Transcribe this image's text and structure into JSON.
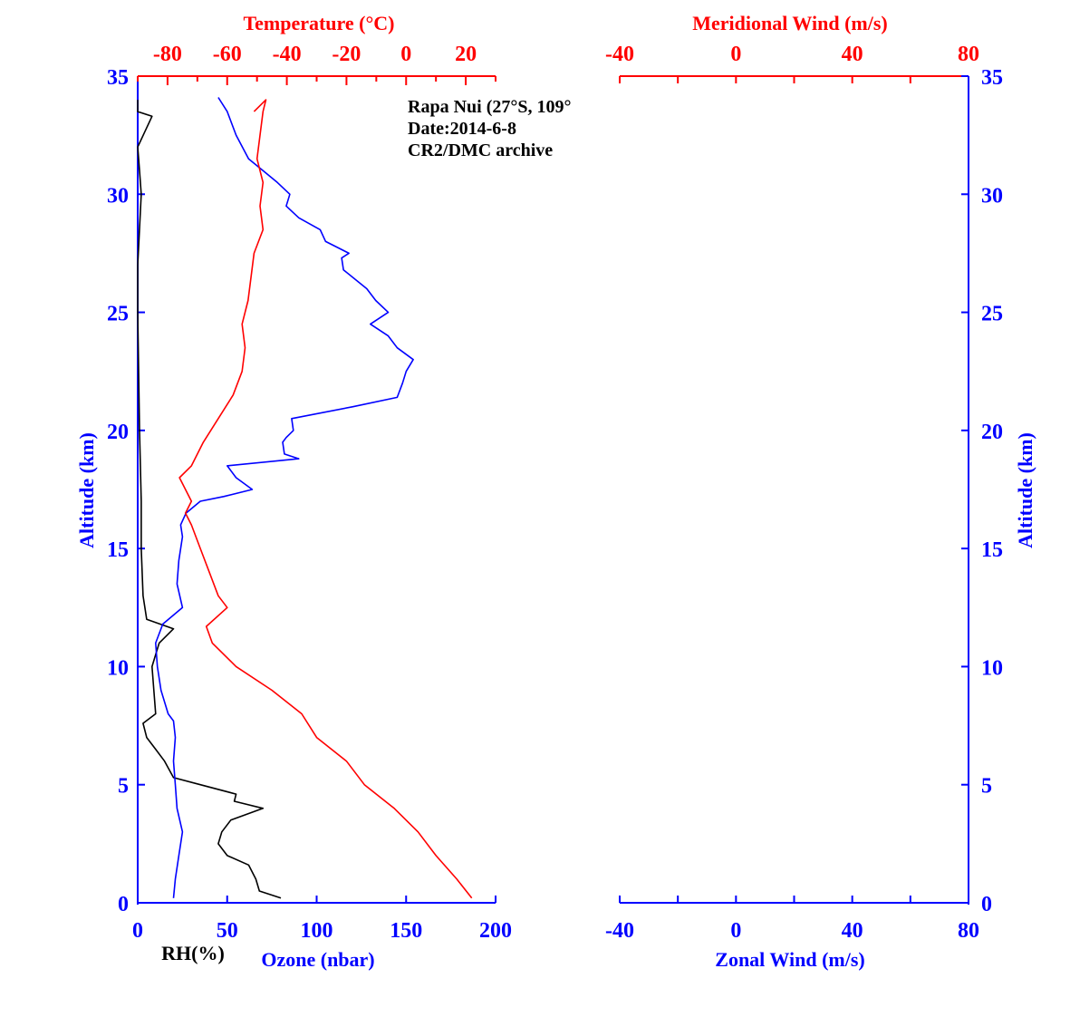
{
  "chart_data": [
    {
      "type": "line",
      "panel": "left",
      "annotations": [
        "Rapa Nui (27°S, 109°",
        "Date:2014-6-8",
        "CR2/DMC archive"
      ],
      "y_axis": {
        "label": "Altitude (km)",
        "range": [
          0,
          35
        ],
        "ticks": [
          0,
          5,
          10,
          15,
          20,
          25,
          30,
          35
        ],
        "color": "#0000ff"
      },
      "x_axes": [
        {
          "label": "Ozone (nbar)",
          "position": "bottom",
          "range": [
            0,
            200
          ],
          "ticks": [
            0,
            50,
            100,
            150,
            200
          ],
          "color": "#0000ff"
        },
        {
          "label": "RH(%)",
          "position": "bottom",
          "color": "#000000"
        },
        {
          "label": "Temperature (°C)",
          "position": "top",
          "range": [
            -90,
            30
          ],
          "ticks": [
            -80,
            -60,
            -40,
            -20,
            0,
            20
          ],
          "color": "#ff0000"
        }
      ],
      "series": [
        {
          "name": "Ozone (nbar)",
          "axis": "Ozone (nbar)",
          "color": "#0000ff",
          "points": [
            [
              20,
              0.2
            ],
            [
              21,
              1
            ],
            [
              23,
              2
            ],
            [
              25,
              3
            ],
            [
              22,
              4
            ],
            [
              21,
              5
            ],
            [
              20,
              6
            ],
            [
              21,
              7
            ],
            [
              20,
              7.7
            ],
            [
              17,
              8
            ],
            [
              13,
              9
            ],
            [
              11,
              10
            ],
            [
              10,
              11
            ],
            [
              14,
              11.8
            ],
            [
              25,
              12.5
            ],
            [
              22,
              13.5
            ],
            [
              23,
              14.5
            ],
            [
              25,
              15.5
            ],
            [
              24,
              16
            ],
            [
              27,
              16.5
            ],
            [
              35,
              17
            ],
            [
              48,
              17.2
            ],
            [
              64,
              17.5
            ],
            [
              55,
              18
            ],
            [
              50,
              18.5
            ],
            [
              90,
              18.8
            ],
            [
              82,
              19
            ],
            [
              81,
              19.5
            ],
            [
              83,
              19.7
            ],
            [
              87,
              20
            ],
            [
              86,
              20.5
            ],
            [
              120,
              21
            ],
            [
              145,
              21.4
            ],
            [
              148,
              22
            ],
            [
              150,
              22.5
            ],
            [
              154,
              23
            ],
            [
              145,
              23.5
            ],
            [
              140,
              24
            ],
            [
              130,
              24.5
            ],
            [
              140,
              25
            ],
            [
              133,
              25.5
            ],
            [
              128,
              26
            ],
            [
              115,
              26.8
            ],
            [
              114,
              27.3
            ],
            [
              118,
              27.5
            ],
            [
              105,
              28
            ],
            [
              102,
              28.5
            ],
            [
              90,
              29
            ],
            [
              83,
              29.5
            ],
            [
              85,
              30
            ],
            [
              78,
              30.5
            ],
            [
              70,
              31
            ],
            [
              62,
              31.5
            ],
            [
              55,
              32.5
            ],
            [
              50,
              33.5
            ],
            [
              45,
              34.1
            ]
          ]
        },
        {
          "name": "RH(%)",
          "axis": "Ozone (nbar)",
          "color": "#000000",
          "points": [
            [
              80,
              0.2
            ],
            [
              68,
              0.5
            ],
            [
              66,
              1
            ],
            [
              62,
              1.6
            ],
            [
              50,
              2
            ],
            [
              45,
              2.5
            ],
            [
              47,
              3
            ],
            [
              52,
              3.5
            ],
            [
              70,
              4
            ],
            [
              54,
              4.3
            ],
            [
              55,
              4.6
            ],
            [
              35,
              5
            ],
            [
              20,
              5.3
            ],
            [
              15,
              6
            ],
            [
              10,
              6.5
            ],
            [
              5,
              7
            ],
            [
              3,
              7.6
            ],
            [
              10,
              8
            ],
            [
              9,
              9
            ],
            [
              8,
              10
            ],
            [
              12,
              11
            ],
            [
              20,
              11.6
            ],
            [
              5,
              12
            ],
            [
              3,
              13
            ],
            [
              2,
              15
            ],
            [
              2,
              17
            ],
            [
              1,
              20
            ],
            [
              0,
              25
            ],
            [
              0,
              27
            ],
            [
              2,
              30
            ],
            [
              1,
              31
            ],
            [
              0,
              32
            ],
            [
              8,
              33.3
            ],
            [
              0,
              33.5
            ],
            [
              0,
              34
            ]
          ]
        },
        {
          "name": "Temperature (°C)",
          "axis": "Temperature (°C)",
          "color": "#ff0000",
          "points": [
            [
              22,
              0.2
            ],
            [
              17,
              1
            ],
            [
              10,
              2
            ],
            [
              4,
              3
            ],
            [
              -4,
              4
            ],
            [
              -14,
              5
            ],
            [
              -20,
              6
            ],
            [
              -30,
              7
            ],
            [
              -35,
              8
            ],
            [
              -45,
              9
            ],
            [
              -57,
              10
            ],
            [
              -65,
              11
            ],
            [
              -67,
              11.7
            ],
            [
              -60,
              12.5
            ],
            [
              -63,
              13
            ],
            [
              -66,
              14
            ],
            [
              -69,
              15
            ],
            [
              -72,
              16
            ],
            [
              -74,
              16.5
            ],
            [
              -72,
              17
            ],
            [
              -76,
              18
            ],
            [
              -72,
              18.5
            ],
            [
              -68,
              19.5
            ],
            [
              -63,
              20.5
            ],
            [
              -58,
              21.5
            ],
            [
              -55,
              22.5
            ],
            [
              -54,
              23.5
            ],
            [
              -55,
              24.5
            ],
            [
              -53,
              25.5
            ],
            [
              -52,
              26.5
            ],
            [
              -51,
              27.5
            ],
            [
              -48,
              28.5
            ],
            [
              -49,
              29.5
            ],
            [
              -48,
              30.5
            ],
            [
              -50,
              31.5
            ],
            [
              -49,
              32.5
            ],
            [
              -48,
              33.5
            ],
            [
              -47,
              34
            ],
            [
              -51,
              33.5
            ]
          ]
        }
      ]
    },
    {
      "type": "line",
      "panel": "right",
      "y_axis": {
        "label": "Altitude (km)",
        "range": [
          0,
          35
        ],
        "ticks": [
          0,
          5,
          10,
          15,
          20,
          25,
          30,
          35
        ],
        "color": "#0000ff"
      },
      "x_axes": [
        {
          "label": "Zonal Wind (m/s)",
          "position": "bottom",
          "range": [
            -40,
            80
          ],
          "ticks": [
            -40,
            0,
            40,
            80
          ],
          "color": "#0000ff"
        },
        {
          "label": "Meridional Wind (m/s)",
          "position": "top",
          "range": [
            -40,
            80
          ],
          "ticks": [
            -40,
            0,
            40,
            80
          ],
          "color": "#ff0000"
        }
      ],
      "series": []
    }
  ]
}
